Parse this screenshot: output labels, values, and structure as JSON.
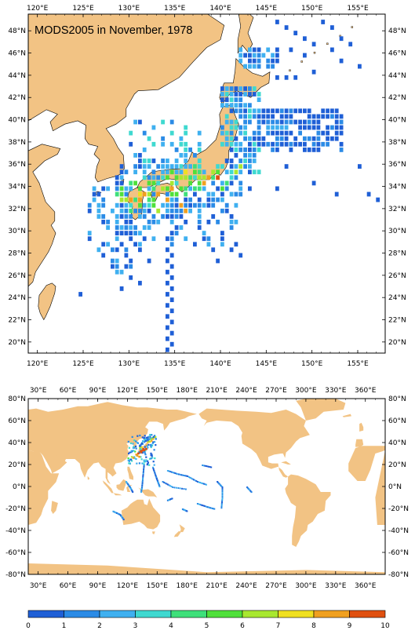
{
  "map_top": {
    "title": "MODS2005 in November, 1978",
    "lon_labels": [
      "120°E",
      "125°E",
      "130°E",
      "135°E",
      "140°E",
      "145°E",
      "150°E",
      "155°E"
    ],
    "lat_labels": [
      "48°N",
      "46°N",
      "44°N",
      "42°N",
      "40°N",
      "38°N",
      "36°N",
      "34°N",
      "32°N",
      "30°N",
      "28°N",
      "26°N",
      "24°N",
      "22°N",
      "20°N"
    ],
    "lon_range": [
      119,
      158
    ],
    "lat_range": [
      19,
      49.5
    ]
  },
  "map_bottom": {
    "lon_labels": [
      "30°E",
      "60°E",
      "90°E",
      "120°E",
      "150°E",
      "180°E",
      "210°E",
      "240°E",
      "270°E",
      "300°E",
      "330°E",
      "360°E"
    ],
    "lat_labels": [
      "80°N",
      "60°N",
      "40°N",
      "20°N",
      "0°N",
      "-20°N",
      "-40°N",
      "-60°N",
      "-80°N"
    ],
    "lon_range": [
      20,
      380
    ],
    "lat_range": [
      -80,
      80
    ]
  },
  "colorbar": {
    "labels": [
      "0",
      "1",
      "2",
      "3",
      "4",
      "5",
      "6",
      "7",
      "8",
      "9",
      "10"
    ],
    "colors": [
      "#1f5fd6",
      "#2b8be6",
      "#3fb0f0",
      "#3fd9d0",
      "#3ee07a",
      "#4fe03a",
      "#a8e830",
      "#f0e020",
      "#f0a020",
      "#e05010"
    ]
  },
  "colors": {
    "land": "#f2c384",
    "ocean": "#ffffff"
  }
}
